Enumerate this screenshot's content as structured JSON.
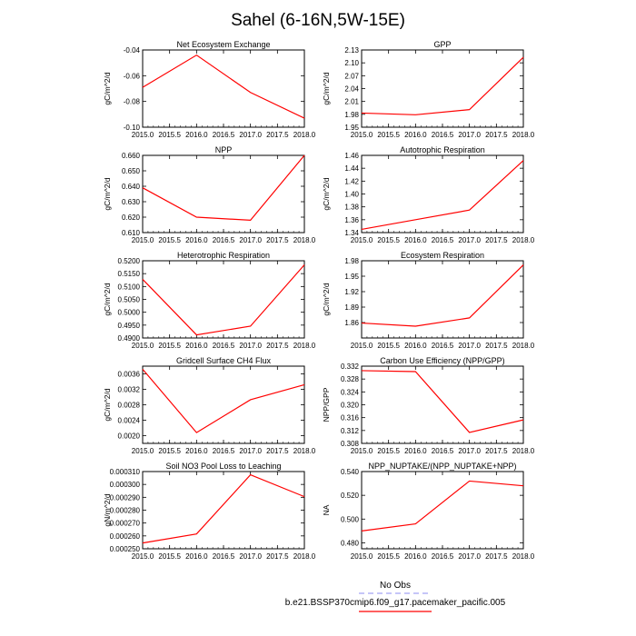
{
  "figure_title": "Sahel (6-16N,5W-15E)",
  "legend": {
    "obs_label": "No Obs",
    "model_label": "b.e21.BSSP370cmip6.f09_g17.pacemaker_pacific.005",
    "obs_color": "#8c8cf0",
    "model_color": "#ff0000"
  },
  "chart_data": [
    {
      "type": "line",
      "title": "Net Ecosystem Exchange",
      "ylabel": "gC/m^2/d",
      "xlabel": "",
      "x": [
        2015.0,
        2016.0,
        2017.0,
        2018.0
      ],
      "series": [
        {
          "name": "b.e21.BSSP370cmip6.f09_g17.pacemaker_pacific.005",
          "values": [
            -0.069,
            -0.044,
            -0.073,
            -0.093
          ],
          "color": "#ff0000"
        }
      ],
      "xlim": [
        2015.0,
        2018.0
      ],
      "xticks": [
        "2015.0",
        "2015.5",
        "2016.0",
        "2016.5",
        "2017.0",
        "2017.5",
        "2018.0"
      ],
      "ylim": [
        -0.1,
        -0.04
      ],
      "yticks": [
        -0.1,
        -0.08,
        -0.06,
        -0.04
      ],
      "yticklabels": [
        "-0.10",
        "-0.08",
        "-0.06",
        "-0.04"
      ]
    },
    {
      "type": "line",
      "title": "GPP",
      "ylabel": "gC/m^2/d",
      "xlabel": "",
      "x": [
        2015.0,
        2016.0,
        2017.0,
        2018.0
      ],
      "series": [
        {
          "name": "b.e21.BSSP370cmip6.f09_g17.pacemaker_pacific.005",
          "values": [
            1.983,
            1.979,
            1.991,
            2.113
          ],
          "color": "#ff0000"
        }
      ],
      "xlim": [
        2015.0,
        2018.0
      ],
      "xticks": [
        "2015.0",
        "2015.5",
        "2016.0",
        "2016.5",
        "2017.0",
        "2017.5",
        "2018.0"
      ],
      "ylim": [
        1.95,
        2.13
      ],
      "yticks": [
        1.95,
        1.98,
        2.01,
        2.04,
        2.07,
        2.1,
        2.13
      ],
      "yticklabels": [
        "1.95",
        "1.98",
        "2.01",
        "2.04",
        "2.07",
        "2.10",
        "2.13"
      ]
    },
    {
      "type": "line",
      "title": "NPP",
      "ylabel": "gC/m^2/d",
      "xlabel": "",
      "x": [
        2015.0,
        2016.0,
        2017.0,
        2018.0
      ],
      "series": [
        {
          "name": "b.e21.BSSP370cmip6.f09_g17.pacemaker_pacific.005",
          "values": [
            0.639,
            0.62,
            0.618,
            0.66
          ],
          "color": "#ff0000"
        }
      ],
      "xlim": [
        2015.0,
        2018.0
      ],
      "xticks": [
        "2015.0",
        "2015.5",
        "2016.0",
        "2016.5",
        "2017.0",
        "2017.5",
        "2018.0"
      ],
      "ylim": [
        0.61,
        0.66
      ],
      "yticks": [
        0.61,
        0.62,
        0.63,
        0.64,
        0.65,
        0.66
      ],
      "yticklabels": [
        "0.610",
        "0.620",
        "0.630",
        "0.640",
        "0.650",
        "0.660"
      ]
    },
    {
      "type": "line",
      "title": "Autotrophic Respiration",
      "ylabel": "gC/m^2/d",
      "xlabel": "",
      "x": [
        2015.0,
        2016.0,
        2017.0,
        2018.0
      ],
      "series": [
        {
          "name": "b.e21.BSSP370cmip6.f09_g17.pacemaker_pacific.005",
          "values": [
            1.345,
            1.36,
            1.375,
            1.452
          ],
          "color": "#ff0000"
        }
      ],
      "xlim": [
        2015.0,
        2018.0
      ],
      "xticks": [
        "2015.0",
        "2015.5",
        "2016.0",
        "2016.5",
        "2017.0",
        "2017.5",
        "2018.0"
      ],
      "ylim": [
        1.34,
        1.46
      ],
      "yticks": [
        1.34,
        1.36,
        1.38,
        1.4,
        1.42,
        1.44,
        1.46
      ],
      "yticklabels": [
        "1.34",
        "1.36",
        "1.38",
        "1.40",
        "1.42",
        "1.44",
        "1.46"
      ]
    },
    {
      "type": "line",
      "title": "Heterotrophic Respiration",
      "ylabel": "gC/m^2/d",
      "xlabel": "",
      "x": [
        2015.0,
        2016.0,
        2017.0,
        2018.0
      ],
      "series": [
        {
          "name": "b.e21.BSSP370cmip6.f09_g17.pacemaker_pacific.005",
          "values": [
            0.5128,
            0.4912,
            0.4946,
            0.5184
          ],
          "color": "#ff0000"
        }
      ],
      "xlim": [
        2015.0,
        2018.0
      ],
      "xticks": [
        "2015.0",
        "2015.5",
        "2016.0",
        "2016.5",
        "2017.0",
        "2017.5",
        "2018.0"
      ],
      "ylim": [
        0.49,
        0.52
      ],
      "yticks": [
        0.49,
        0.495,
        0.5,
        0.505,
        0.51,
        0.515,
        0.52
      ],
      "yticklabels": [
        "0.4900",
        "0.4950",
        "0.5000",
        "0.5050",
        "0.5100",
        "0.5150",
        "0.5200"
      ]
    },
    {
      "type": "line",
      "title": "Ecosystem Respiration",
      "ylabel": "gC/m^2/d",
      "xlabel": "",
      "x": [
        2015.0,
        2016.0,
        2017.0,
        2018.0
      ],
      "series": [
        {
          "name": "b.e21.BSSP370cmip6.f09_g17.pacemaker_pacific.005",
          "values": [
            1.859,
            1.853,
            1.869,
            1.972
          ],
          "color": "#ff0000"
        }
      ],
      "xlim": [
        2015.0,
        2018.0
      ],
      "xticks": [
        "2015.0",
        "2015.5",
        "2016.0",
        "2016.5",
        "2017.0",
        "2017.5",
        "2018.0"
      ],
      "ylim": [
        1.83,
        1.98
      ],
      "yticks": [
        1.86,
        1.89,
        1.92,
        1.95,
        1.98
      ],
      "yticklabels": [
        "1.86",
        "1.89",
        "1.92",
        "1.95",
        "1.98"
      ]
    },
    {
      "type": "line",
      "title": "Gridcell Surface CH4 Flux",
      "ylabel": "gC/m^2/d",
      "xlabel": "",
      "x": [
        2015.0,
        2016.0,
        2017.0,
        2018.0
      ],
      "series": [
        {
          "name": "b.e21.BSSP370cmip6.f09_g17.pacemaker_pacific.005",
          "values": [
            0.00372,
            0.00208,
            0.00293,
            0.00332
          ],
          "color": "#ff0000"
        }
      ],
      "xlim": [
        2015.0,
        2018.0
      ],
      "xticks": [
        "2015.0",
        "2015.5",
        "2016.0",
        "2016.5",
        "2017.0",
        "2017.5",
        "2018.0"
      ],
      "ylim": [
        0.0018,
        0.0038
      ],
      "yticks": [
        0.002,
        0.0024,
        0.0028,
        0.0032,
        0.0036
      ],
      "yticklabels": [
        "0.0020",
        "0.0024",
        "0.0028",
        "0.0032",
        "0.0036"
      ]
    },
    {
      "type": "line",
      "title": "Carbon Use Efficiency (NPP/GPP)",
      "ylabel": "NPP/GPP",
      "xlabel": "",
      "x": [
        2015.0,
        2016.0,
        2017.0,
        2018.0
      ],
      "series": [
        {
          "name": "b.e21.BSSP370cmip6.f09_g17.pacemaker_pacific.005",
          "values": [
            0.3306,
            0.3303,
            0.3114,
            0.3153
          ],
          "color": "#ff0000"
        }
      ],
      "xlim": [
        2015.0,
        2018.0
      ],
      "xticks": [
        "2015.0",
        "2015.5",
        "2016.0",
        "2016.5",
        "2017.0",
        "2017.5",
        "2018.0"
      ],
      "ylim": [
        0.308,
        0.332
      ],
      "yticks": [
        0.308,
        0.312,
        0.316,
        0.32,
        0.324,
        0.328,
        0.332
      ],
      "yticklabels": [
        "0.308",
        "0.312",
        "0.316",
        "0.320",
        "0.324",
        "0.328",
        "0.332"
      ]
    },
    {
      "type": "line",
      "title": "Soil NO3 Pool Loss to Leaching",
      "ylabel": "gN/m^2/d",
      "xlabel": "",
      "x": [
        2015.0,
        2016.0,
        2017.0,
        2018.0
      ],
      "series": [
        {
          "name": "b.e21.BSSP370cmip6.f09_g17.pacemaker_pacific.005",
          "values": [
            0.0002545,
            0.0002615,
            0.0003075,
            0.0002905
          ],
          "color": "#ff0000"
        }
      ],
      "xlim": [
        2015.0,
        2018.0
      ],
      "xticks": [
        "2015.0",
        "2015.5",
        "2016.0",
        "2016.5",
        "2017.0",
        "2017.5",
        "2018.0"
      ],
      "ylim": [
        0.00025,
        0.00031
      ],
      "yticks": [
        0.00025,
        0.00026,
        0.00027,
        0.00028,
        0.00029,
        0.0003,
        0.00031
      ],
      "yticklabels": [
        "0.000250",
        "0.000260",
        "0.000270",
        "0.000280",
        "0.000290",
        "0.000300",
        "0.000310"
      ]
    },
    {
      "type": "line",
      "title": "NPP_NUPTAKE/(NPP_NUPTAKE+NPP)",
      "ylabel": "NA",
      "xlabel": "",
      "x": [
        2015.0,
        2016.0,
        2017.0,
        2018.0
      ],
      "series": [
        {
          "name": "b.e21.BSSP370cmip6.f09_g17.pacemaker_pacific.005",
          "values": [
            0.49,
            0.496,
            0.532,
            0.528
          ],
          "color": "#ff0000"
        }
      ],
      "xlim": [
        2015.0,
        2018.0
      ],
      "xticks": [
        "2015.0",
        "2015.5",
        "2016.0",
        "2016.5",
        "2017.0",
        "2017.5",
        "2018.0"
      ],
      "ylim": [
        0.475,
        0.54
      ],
      "yticks": [
        0.48,
        0.5,
        0.52,
        0.54
      ],
      "yticklabels": [
        "0.480",
        "0.500",
        "0.520",
        "0.540"
      ]
    }
  ]
}
